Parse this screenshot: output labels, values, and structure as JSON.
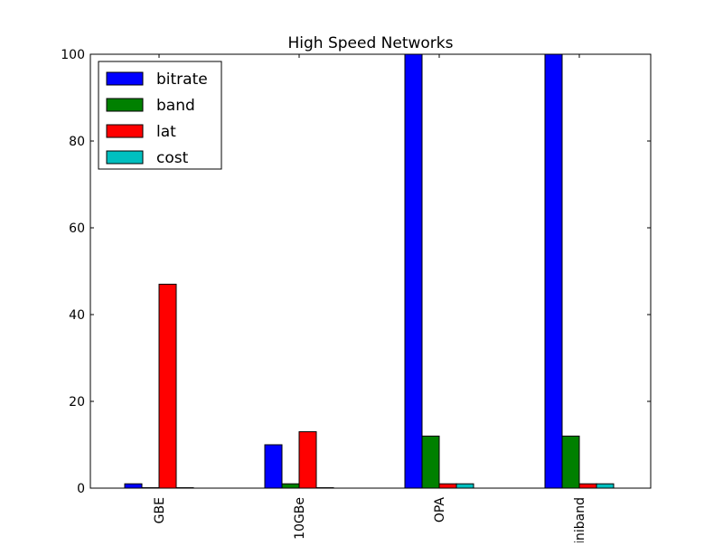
{
  "chart_data": {
    "type": "bar",
    "title": "High Speed Networks",
    "xlabel": "",
    "ylabel": "",
    "categories": [
      "GBE",
      "10GBe",
      "OPA",
      "Infiniband"
    ],
    "series": [
      {
        "name": "bitrate",
        "color": "#0000ff",
        "values": [
          1,
          10,
          100,
          100
        ]
      },
      {
        "name": "band",
        "color": "#008000",
        "values": [
          0.1,
          1,
          12,
          12
        ]
      },
      {
        "name": "lat",
        "color": "#ff0000",
        "values": [
          47,
          13,
          1,
          1
        ]
      },
      {
        "name": "cost",
        "color": "#00bfbf",
        "values": [
          0.1,
          0.1,
          1,
          1
        ]
      }
    ],
    "ylim": [
      0,
      100
    ],
    "yticks": [
      0,
      20,
      40,
      60,
      80,
      100
    ],
    "xtick_rotation": "vertical",
    "legend_position": "top-left",
    "grid": false
  }
}
